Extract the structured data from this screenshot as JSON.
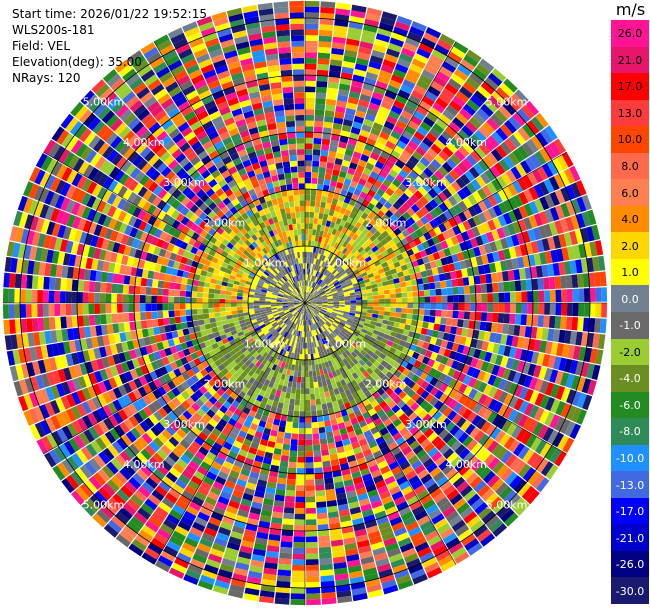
{
  "info": {
    "start_time": "Start time: 2026/01/22 19:52:15",
    "station": "WLS200s-181",
    "field": "Field: VEL",
    "elevation": "Elevation(deg): 35.00",
    "nrays": "NRays: 120"
  },
  "colorbar": {
    "unit": "m/s",
    "labels": [
      "26.0",
      "21.0",
      "17.0",
      "13.0",
      "10.0",
      "8.0",
      "6.0",
      "4.0",
      "2.0",
      "1.0",
      "0.0",
      "-1.0",
      "-2.0",
      "-4.0",
      "-6.0",
      "-8.0",
      "-10.0",
      "-13.0",
      "-17.0",
      "-21.0",
      "-26.0",
      "-30.0"
    ],
    "colors": [
      "#ff1493",
      "#e8156b",
      "#ff0000",
      "#ff3b3b",
      "#ff4500",
      "#ff6a4d",
      "#ff7f50",
      "#ff8c00",
      "#ffd700",
      "#ffff00",
      "#708090",
      "#696969",
      "#9acd32",
      "#6b8e23",
      "#228b22",
      "#2e8b57",
      "#1e90ff",
      "#4169e1",
      "#0000ff",
      "#0000cd",
      "#000080",
      "#191970"
    ]
  },
  "chart_data": {
    "type": "heatmap",
    "title": "",
    "field": "VEL",
    "units": "m/s",
    "projection": "polar PPI",
    "elevation_deg": 35.0,
    "n_rays": 120,
    "range_rings_km": [
      1.0,
      2.0,
      3.0,
      4.0,
      5.0
    ],
    "range_ring_labels": [
      "1.00km",
      "2.00km",
      "3.00km",
      "4.00km",
      "5.00km"
    ],
    "max_range_km": 5.3,
    "color_levels": [
      26.0,
      21.0,
      17.0,
      13.0,
      10.0,
      8.0,
      6.0,
      4.0,
      2.0,
      1.0,
      0.0,
      -1.0,
      -2.0,
      -4.0,
      -6.0,
      -8.0,
      -10.0,
      -13.0,
      -17.0,
      -21.0,
      -26.0,
      -30.0
    ],
    "near_field": {
      "inner_core_km": 1.0,
      "inner_core_dominant_values": [
        -1.0,
        0.0,
        1.0
      ],
      "mid_annulus_km": [
        1.0,
        2.0
      ],
      "mid_annulus_dominant_values": [
        2.0,
        4.0,
        -2.0,
        -4.0
      ],
      "outer_noise_start_km": 2.0
    },
    "grid": true
  }
}
